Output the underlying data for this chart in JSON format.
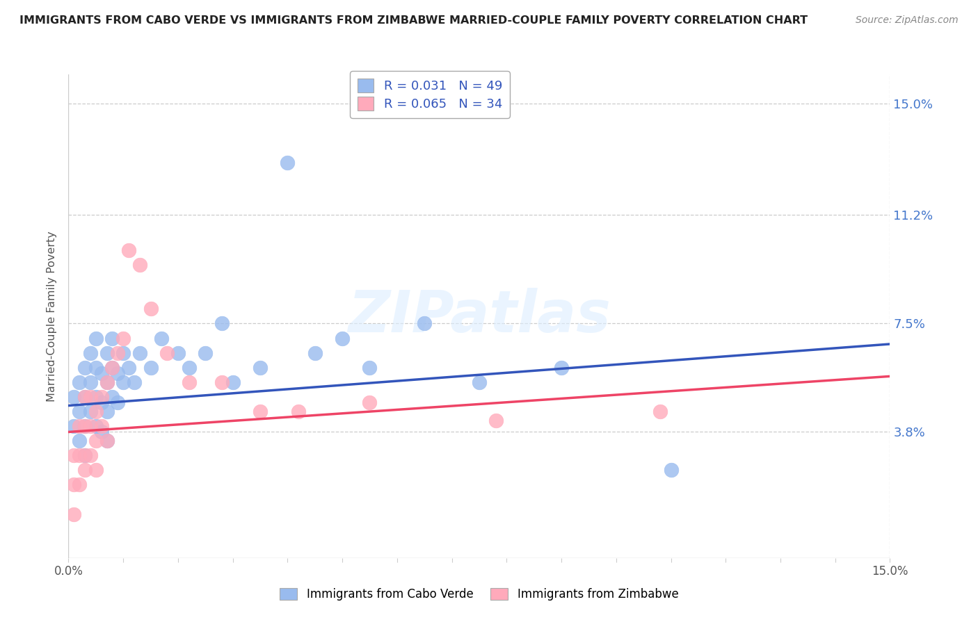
{
  "title": "IMMIGRANTS FROM CABO VERDE VS IMMIGRANTS FROM ZIMBABWE MARRIED-COUPLE FAMILY POVERTY CORRELATION CHART",
  "source": "Source: ZipAtlas.com",
  "ylabel": "Married-Couple Family Poverty",
  "xlim": [
    0.0,
    0.15
  ],
  "ylim": [
    -0.005,
    0.16
  ],
  "ytick_values": [
    0.0,
    0.038,
    0.075,
    0.112,
    0.15
  ],
  "ytick_labels": [
    "",
    "3.8%",
    "7.5%",
    "11.2%",
    "15.0%"
  ],
  "legend_label1": "Immigrants from Cabo Verde",
  "legend_label2": "Immigrants from Zimbabwe",
  "r1": "0.031",
  "n1": "49",
  "r2": "0.065",
  "n2": "34",
  "color1": "#99BBEE",
  "color2": "#FFAABB",
  "line_color1": "#3355BB",
  "line_color2": "#EE4466",
  "watermark": "ZIPatlas",
  "cabo_verde_x": [
    0.001,
    0.001,
    0.002,
    0.002,
    0.002,
    0.003,
    0.003,
    0.003,
    0.003,
    0.004,
    0.004,
    0.004,
    0.005,
    0.005,
    0.005,
    0.005,
    0.006,
    0.006,
    0.006,
    0.007,
    0.007,
    0.007,
    0.007,
    0.008,
    0.008,
    0.008,
    0.009,
    0.009,
    0.01,
    0.01,
    0.011,
    0.012,
    0.013,
    0.015,
    0.017,
    0.02,
    0.022,
    0.025,
    0.028,
    0.03,
    0.035,
    0.04,
    0.045,
    0.05,
    0.055,
    0.065,
    0.075,
    0.09,
    0.11
  ],
  "cabo_verde_y": [
    0.05,
    0.04,
    0.055,
    0.045,
    0.035,
    0.06,
    0.05,
    0.04,
    0.03,
    0.065,
    0.055,
    0.045,
    0.07,
    0.06,
    0.05,
    0.04,
    0.058,
    0.048,
    0.038,
    0.065,
    0.055,
    0.045,
    0.035,
    0.07,
    0.06,
    0.05,
    0.058,
    0.048,
    0.065,
    0.055,
    0.06,
    0.055,
    0.065,
    0.06,
    0.07,
    0.065,
    0.06,
    0.065,
    0.075,
    0.055,
    0.06,
    0.13,
    0.065,
    0.07,
    0.06,
    0.075,
    0.055,
    0.06,
    0.025
  ],
  "zimbabwe_x": [
    0.001,
    0.001,
    0.001,
    0.002,
    0.002,
    0.002,
    0.003,
    0.003,
    0.003,
    0.003,
    0.004,
    0.004,
    0.004,
    0.005,
    0.005,
    0.005,
    0.006,
    0.006,
    0.007,
    0.007,
    0.008,
    0.009,
    0.01,
    0.011,
    0.013,
    0.015,
    0.018,
    0.022,
    0.028,
    0.035,
    0.042,
    0.055,
    0.078,
    0.108
  ],
  "zimbabwe_y": [
    0.01,
    0.02,
    0.03,
    0.03,
    0.04,
    0.02,
    0.03,
    0.025,
    0.04,
    0.05,
    0.03,
    0.04,
    0.05,
    0.035,
    0.045,
    0.025,
    0.04,
    0.05,
    0.035,
    0.055,
    0.06,
    0.065,
    0.07,
    0.1,
    0.095,
    0.08,
    0.065,
    0.055,
    0.055,
    0.045,
    0.045,
    0.048,
    0.042,
    0.045
  ]
}
